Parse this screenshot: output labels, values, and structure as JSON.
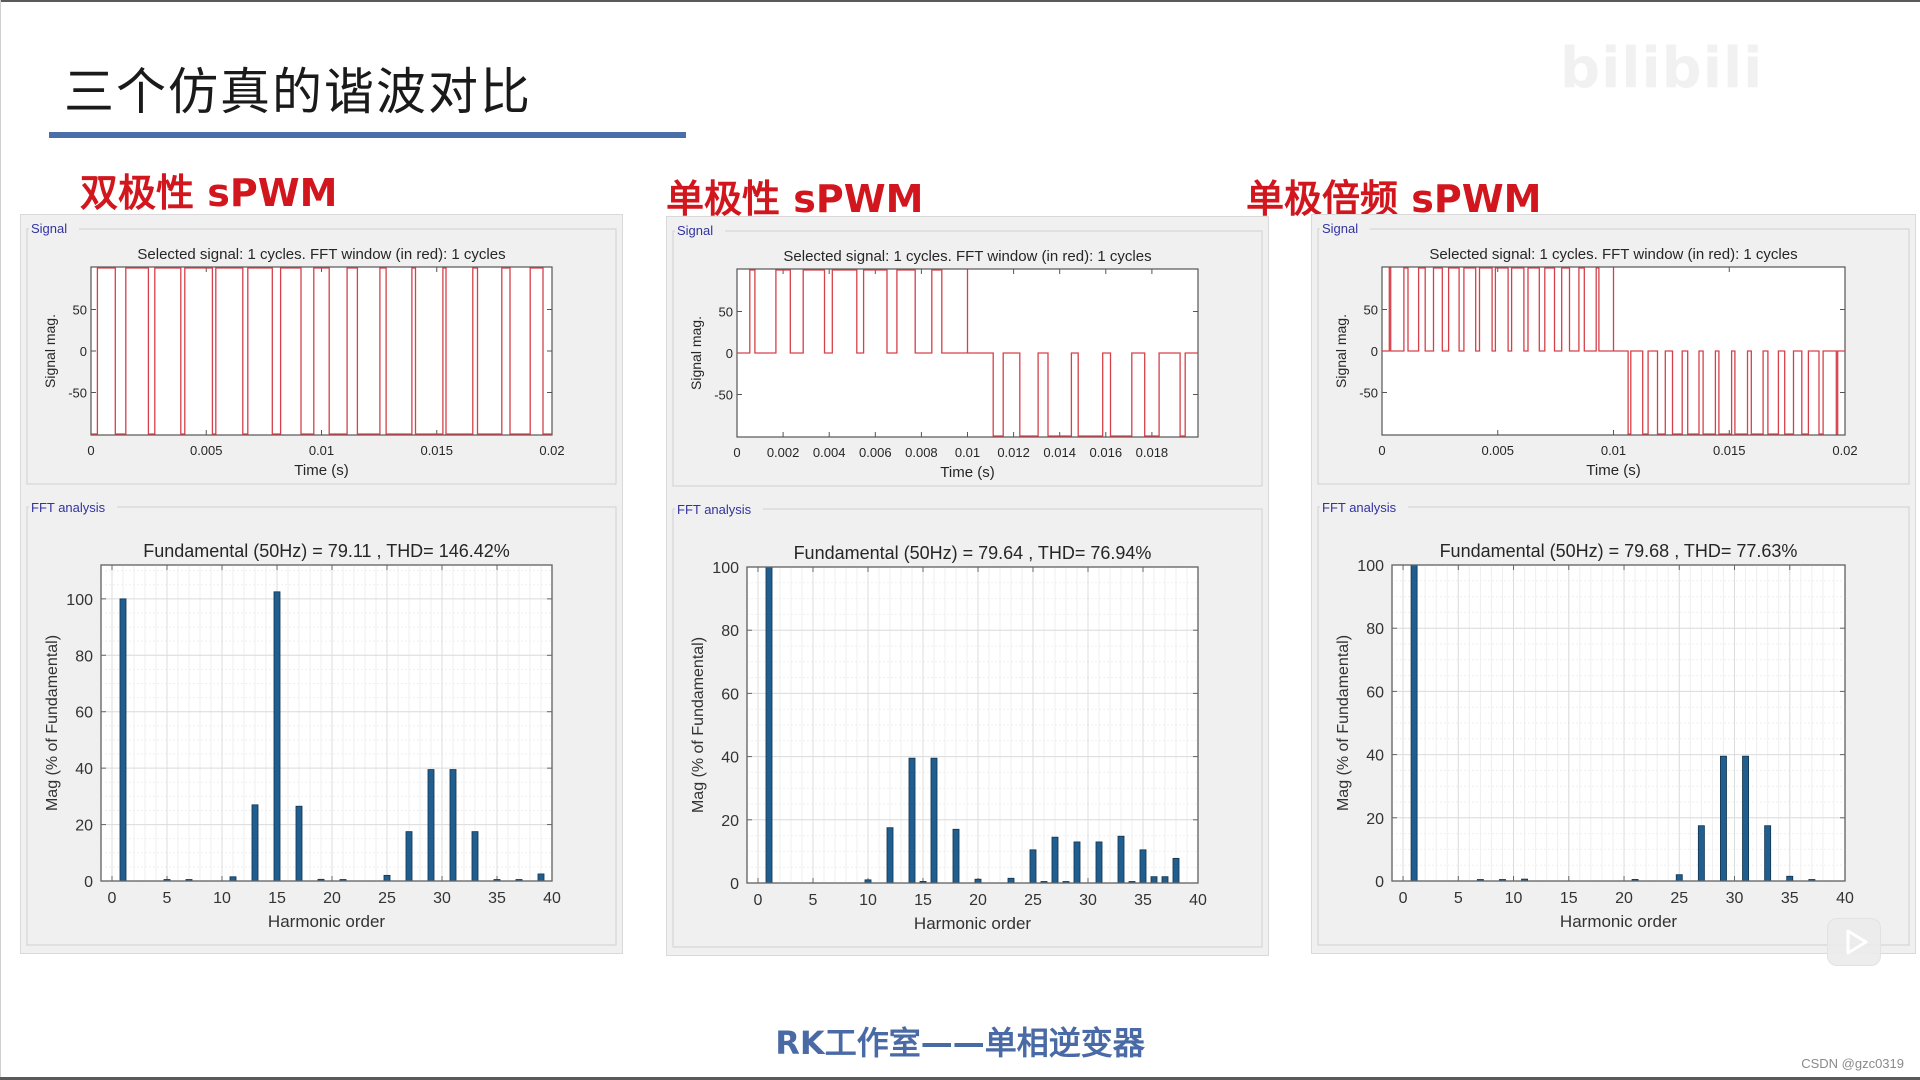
{
  "slide": {
    "title": "三个仿真的谐波对比",
    "footer": "RK工作室——单相逆变器",
    "credit": "CSDN @gzc0319",
    "watermark": "bilibili"
  },
  "colors": {
    "accent_rule": "#4a6ea9",
    "method_title": "#d2161e",
    "signal_trace": "#d6404a",
    "bar_fill": "#1f5e8e",
    "panel_bg": "#f0f0f0",
    "group_label": "#3232a0",
    "footer_text": "#4a6aa6"
  },
  "panels": [
    {
      "method": "双极性 sPWM",
      "signal_group": "Signal",
      "fft_group": "FFT analysis",
      "signal_title": "Selected signal: 1 cycles. FFT window (in red): 1 cycles",
      "fft_title": "Fundamental (50Hz) = 79.11 , THD= 146.42%"
    },
    {
      "method": "单极性 sPWM",
      "signal_group": "Signal",
      "fft_group": "FFT analysis",
      "signal_title": "Selected signal: 1 cycles. FFT window (in red): 1 cycles",
      "fft_title": "Fundamental (50Hz) = 79.64 , THD= 76.94%"
    },
    {
      "method": "单极倍频 sPWM",
      "signal_group": "Signal",
      "fft_group": "FFT analysis",
      "signal_title": "Selected signal: 1 cycles. FFT window (in red): 1 cycles",
      "fft_title": "Fundamental (50Hz) = 79.68 , THD= 77.63%"
    }
  ],
  "chart_data": [
    {
      "type": "line",
      "panel": "双极性 sPWM",
      "title": "Selected signal: 1 cycles. FFT window (in red): 1 cycles",
      "xlabel": "Time (s)",
      "ylabel": "Signal mag.",
      "xlim": [
        0,
        0.02
      ],
      "ylim": [
        -100,
        100
      ],
      "xticks": [
        "0",
        "0.005",
        "0.01",
        "0.015",
        "0.02"
      ],
      "yticks": [
        "50",
        "0",
        "-50"
      ],
      "waveform": "bipolar PWM switching between +100 and -100",
      "grid": false
    },
    {
      "type": "bar",
      "panel": "双极性 sPWM",
      "title": "Fundamental (50Hz) = 79.11 , THD= 146.42%",
      "xlabel": "Harmonic order",
      "ylabel": "Mag (% of Fundamental)",
      "xlim": [
        -1,
        40
      ],
      "ylim": [
        0,
        112
      ],
      "xticks": [
        "0",
        "5",
        "10",
        "15",
        "20",
        "25",
        "30",
        "35",
        "40"
      ],
      "yticks": [
        "0",
        "20",
        "40",
        "60",
        "80",
        "100"
      ],
      "grid": true,
      "x": [
        1,
        5,
        7,
        11,
        13,
        15,
        17,
        19,
        21,
        25,
        27,
        29,
        31,
        33,
        35,
        37,
        39
      ],
      "values": [
        100,
        0.5,
        0.5,
        1.5,
        27,
        102.5,
        26.5,
        0.6,
        0.4,
        2,
        17.5,
        39.5,
        39.5,
        17.5,
        0.5,
        0.3,
        2.5
      ]
    },
    {
      "type": "line",
      "panel": "单极性 sPWM",
      "title": "Selected signal: 1 cycles. FFT window (in red): 1 cycles",
      "xlabel": "Time (s)",
      "ylabel": "Signal mag.",
      "xlim": [
        0,
        0.02
      ],
      "ylim": [
        -100,
        100
      ],
      "xticks": [
        "0",
        "0.002",
        "0.004",
        "0.006",
        "0.008",
        "0.01",
        "0.012",
        "0.014",
        "0.016",
        "0.018"
      ],
      "yticks": [
        "50",
        "0",
        "-50"
      ],
      "waveform": "unipolar PWM: 0/+100 in first half cycle, 0/-100 in second half",
      "grid": false
    },
    {
      "type": "bar",
      "panel": "单极性 sPWM",
      "title": "Fundamental (50Hz) = 79.64 , THD= 76.94%",
      "xlabel": "Harmonic order",
      "ylabel": "Mag (% of Fundamental)",
      "xlim": [
        -1,
        40
      ],
      "ylim": [
        0,
        100
      ],
      "xticks": [
        "0",
        "5",
        "10",
        "15",
        "20",
        "25",
        "30",
        "35",
        "40"
      ],
      "yticks": [
        "0",
        "20",
        "40",
        "60",
        "80",
        "100"
      ],
      "grid": true,
      "x": [
        1,
        10,
        12,
        14,
        15,
        16,
        18,
        20,
        23,
        25,
        26,
        27,
        28,
        29,
        31,
        33,
        34,
        35,
        36,
        37,
        38
      ],
      "values": [
        100,
        1,
        17.5,
        39.5,
        0.5,
        39.5,
        17,
        1.2,
        1.5,
        10.5,
        0.3,
        14.5,
        0.3,
        13,
        13,
        14.8,
        0.3,
        10.5,
        2,
        2,
        7.8
      ]
    },
    {
      "type": "line",
      "panel": "单极倍频 sPWM",
      "title": "Selected signal: 1 cycles. FFT window (in red): 1 cycles",
      "xlabel": "Time (s)",
      "ylabel": "Signal mag.",
      "xlim": [
        0,
        0.02
      ],
      "ylim": [
        -100,
        100
      ],
      "xticks": [
        "0",
        "0.005",
        "0.01",
        "0.015",
        "0.02"
      ],
      "yticks": [
        "50",
        "0",
        "-50"
      ],
      "waveform": "unipolar frequency-doubled PWM: dense 0/+100 pulses then 0/-100 pulses",
      "grid": false
    },
    {
      "type": "bar",
      "panel": "单极倍频 sPWM",
      "title": "Fundamental (50Hz) = 79.68 , THD= 77.63%",
      "xlabel": "Harmonic order",
      "ylabel": "Mag (% of Fundamental)",
      "xlim": [
        -1,
        40
      ],
      "ylim": [
        0,
        100
      ],
      "xticks": [
        "0",
        "5",
        "10",
        "15",
        "20",
        "25",
        "30",
        "35",
        "40"
      ],
      "yticks": [
        "0",
        "20",
        "40",
        "60",
        "80",
        "100"
      ],
      "grid": true,
      "x": [
        1,
        7,
        9,
        11,
        21,
        25,
        27,
        29,
        31,
        33,
        35,
        37
      ],
      "values": [
        100,
        0.3,
        0.4,
        0.6,
        0.5,
        2,
        17.5,
        39.5,
        39.5,
        17.5,
        1.5,
        0.4
      ]
    }
  ]
}
